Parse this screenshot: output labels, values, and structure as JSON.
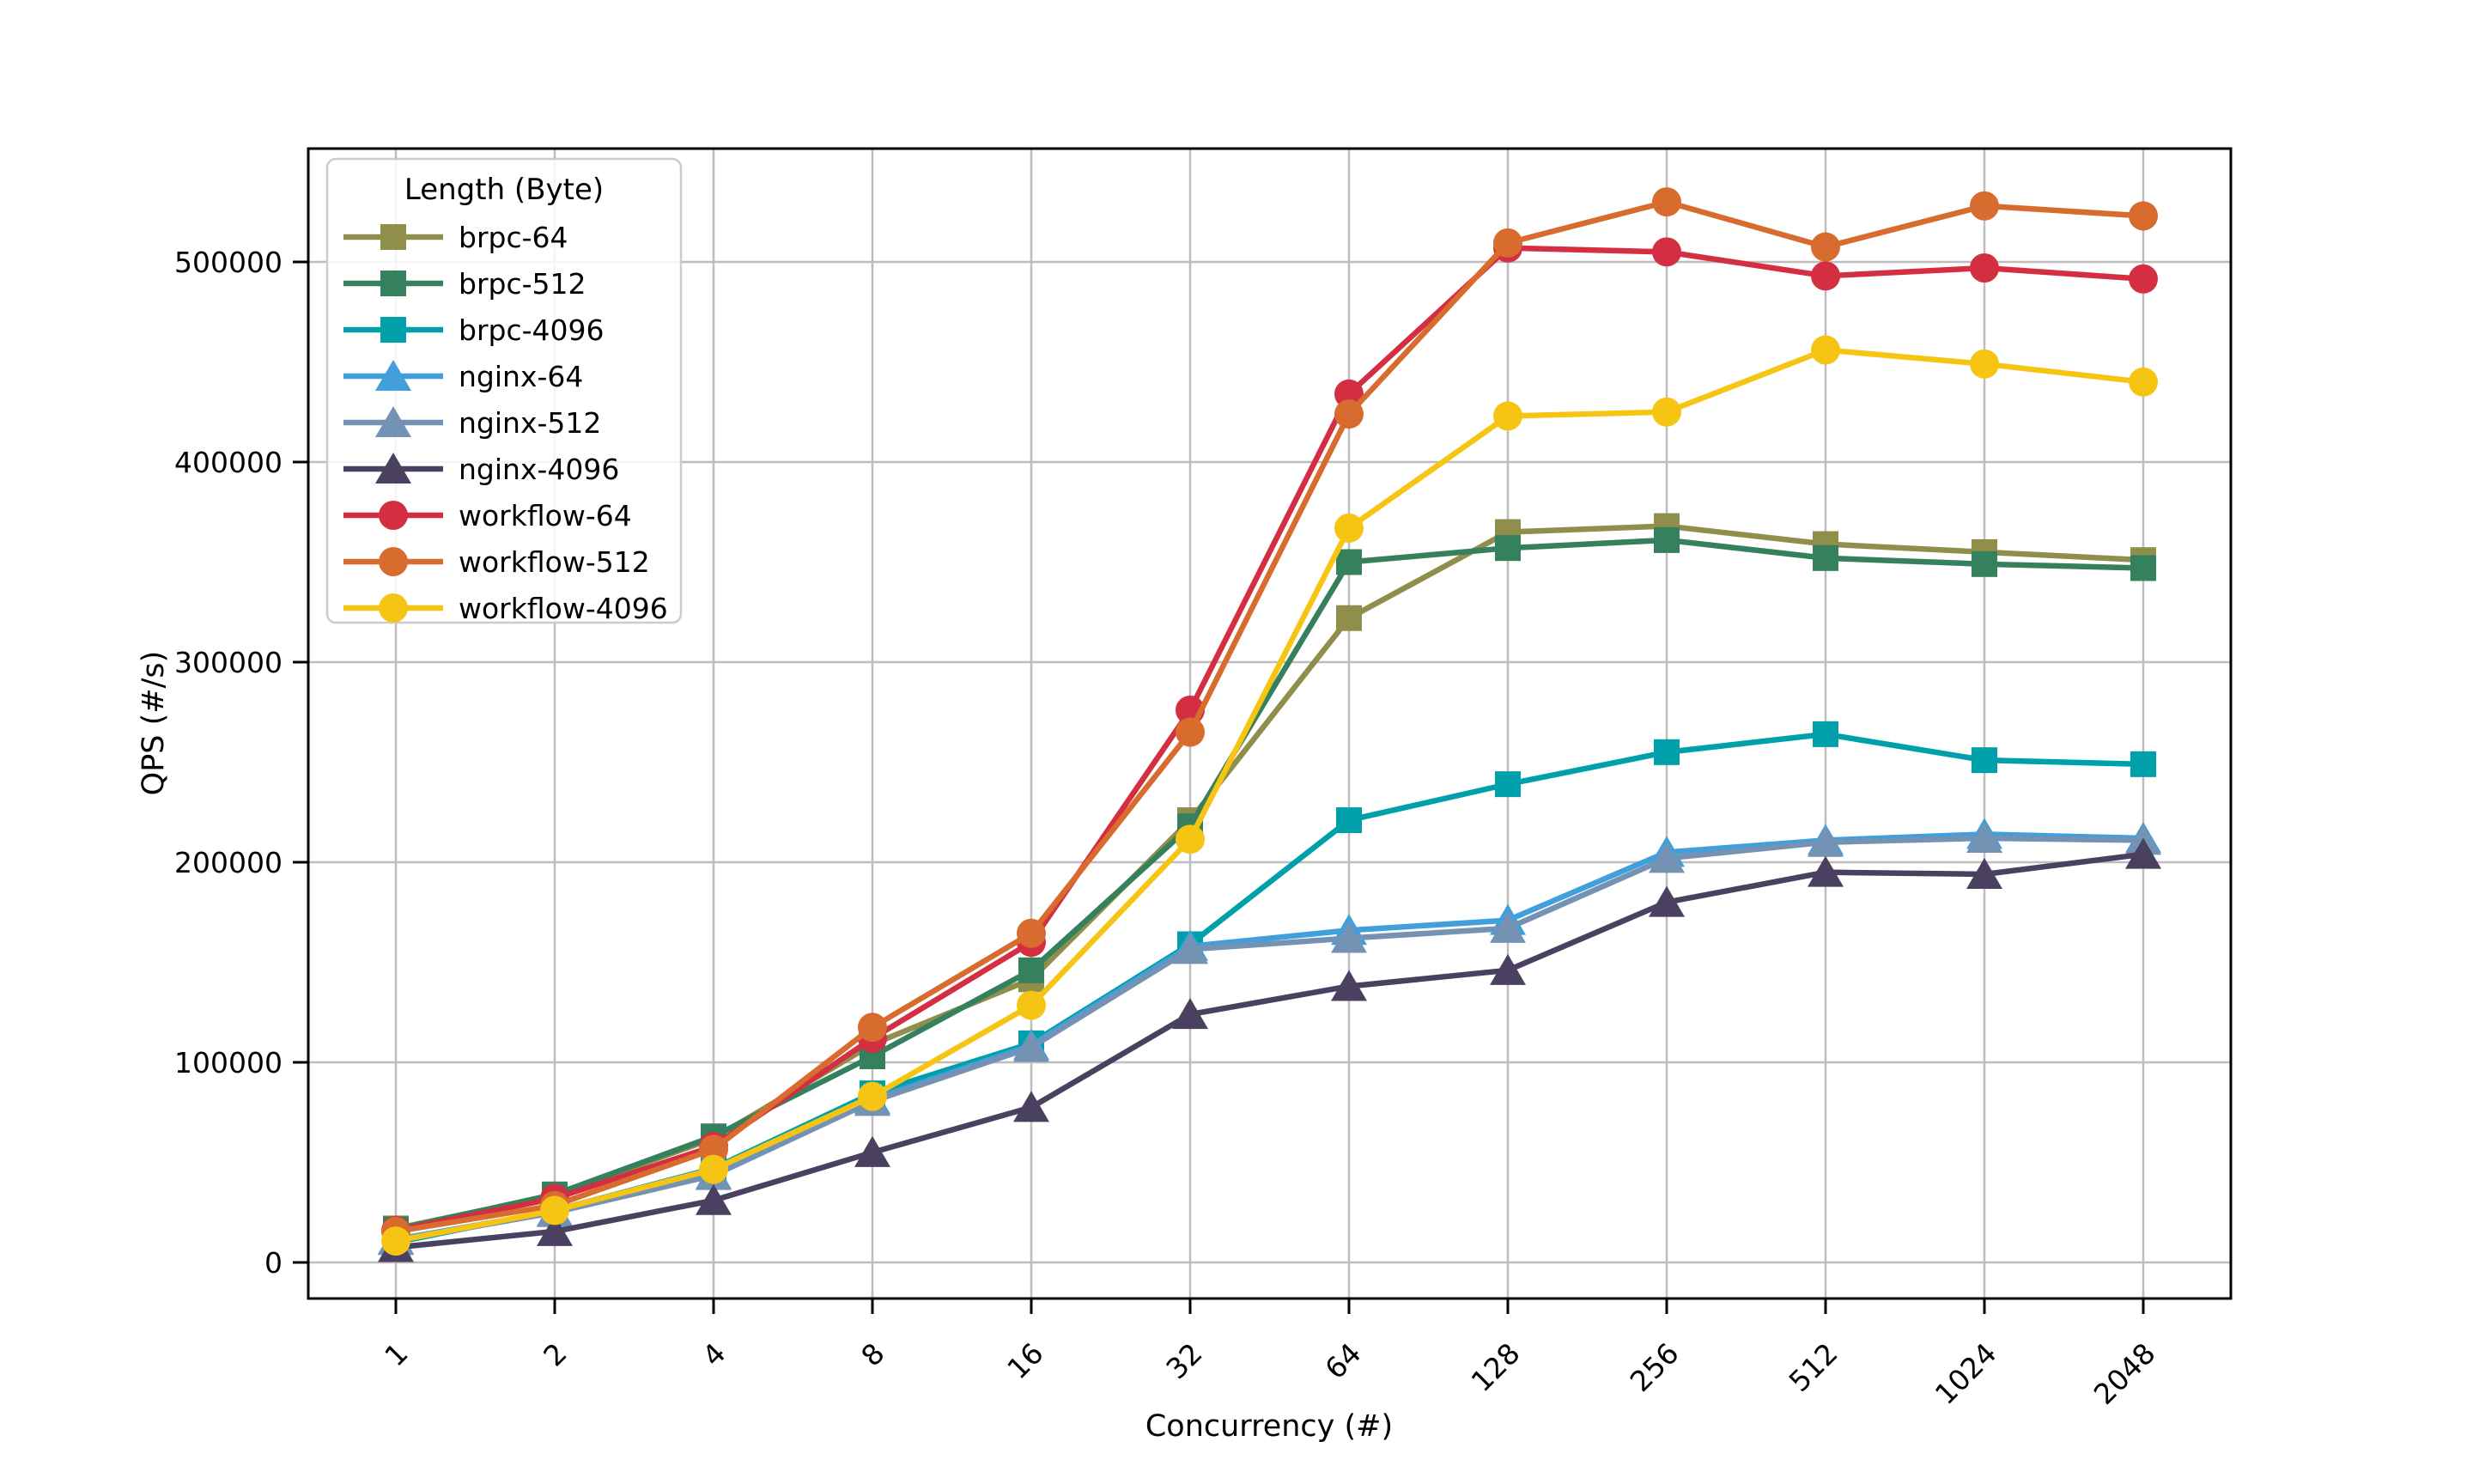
{
  "chart_data": {
    "type": "line",
    "title": "",
    "xlabel": "Concurrency (#)",
    "ylabel": "QPS (#/s)",
    "legend_title": "Length (Byte)",
    "legend_position": "upper-left",
    "grid": true,
    "x_scale": "categorical-log2",
    "categories": [
      "1",
      "2",
      "4",
      "8",
      "16",
      "32",
      "64",
      "128",
      "256",
      "512",
      "1024",
      "2048"
    ],
    "ytick_values": [
      0,
      100000,
      200000,
      300000,
      400000,
      500000
    ],
    "ytick_labels": [
      "0",
      "100000",
      "200000",
      "300000",
      "400000",
      "500000"
    ],
    "ylim": [
      -18000,
      556700
    ],
    "frame_color": "#000000",
    "grid_color": "#bdbdbd",
    "series": [
      {
        "name": "brpc-64",
        "color": "#8f8f4b",
        "marker": "square",
        "values": [
          17000,
          33500,
          62000,
          109000,
          141500,
          221000,
          322000,
          365000,
          368000,
          359000,
          355000,
          351000
        ]
      },
      {
        "name": "brpc-512",
        "color": "#35805d",
        "marker": "square",
        "values": [
          16500,
          34000,
          63000,
          103000,
          146000,
          218000,
          350000,
          357000,
          361000,
          352000,
          349000,
          347000
        ]
      },
      {
        "name": "brpc-4096",
        "color": "#00a0aa",
        "marker": "square",
        "values": [
          10000,
          26000,
          47000,
          84500,
          109500,
          159000,
          221000,
          239000,
          255000,
          264000,
          251000,
          249000
        ]
      },
      {
        "name": "nginx-64",
        "color": "#419fdc",
        "marker": "triangle",
        "values": [
          11500,
          25500,
          44000,
          81500,
          108500,
          158000,
          166000,
          171000,
          205000,
          211000,
          214000,
          212000
        ]
      },
      {
        "name": "nginx-512",
        "color": "#7492b4",
        "marker": "triangle",
        "values": [
          11000,
          25000,
          43500,
          80500,
          107500,
          156500,
          162000,
          167000,
          202000,
          210000,
          212000,
          211000
        ]
      },
      {
        "name": "nginx-4096",
        "color": "#49415f",
        "marker": "triangle",
        "values": [
          7500,
          15500,
          31000,
          55000,
          77500,
          124000,
          138000,
          146000,
          180000,
          195000,
          194000,
          204000
        ]
      },
      {
        "name": "workflow-64",
        "color": "#d42e42",
        "marker": "circle",
        "values": [
          16000,
          32000,
          58000,
          112000,
          160000,
          276000,
          434000,
          507000,
          505000,
          493000,
          497000,
          491500
        ]
      },
      {
        "name": "workflow-512",
        "color": "#d76c2e",
        "marker": "circle",
        "values": [
          15500,
          28500,
          56500,
          117500,
          164500,
          265000,
          424000,
          509500,
          530000,
          507500,
          528000,
          523000
        ]
      },
      {
        "name": "workflow-4096",
        "color": "#f6c514",
        "marker": "circle",
        "values": [
          10700,
          26000,
          46500,
          83000,
          128500,
          211500,
          367000,
          423000,
          425000,
          456000,
          449000,
          440000
        ]
      }
    ]
  }
}
